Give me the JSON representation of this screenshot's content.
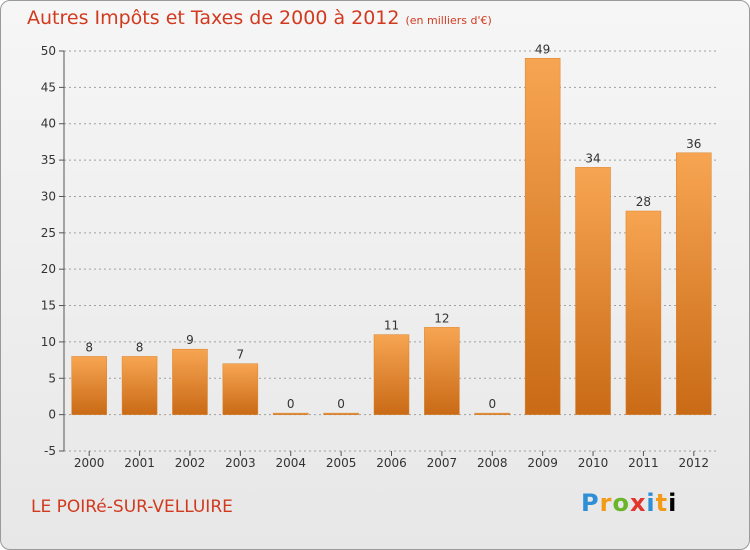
{
  "header": {
    "title": "Autres Impôts et Taxes de 2000 à 2012",
    "subtitle": "(en milliers d'€)"
  },
  "footer": {
    "place": "LE POIRé-SUR-VELLUIRE",
    "logo": [
      "P",
      "r",
      "o",
      "x",
      "i",
      "t",
      "i"
    ]
  },
  "colors": {
    "bar_top": "#f7a552",
    "bar_bottom": "#c96a16",
    "title": "#d23a1f",
    "grid": "#a0a0a0"
  },
  "chart_data": {
    "type": "bar",
    "title": "Autres Impôts et Taxes de 2000 à 2012",
    "subtitle": "(en milliers d'€)",
    "xlabel": "",
    "ylabel": "",
    "categories": [
      "2000",
      "2001",
      "2002",
      "2003",
      "2004",
      "2005",
      "2006",
      "2007",
      "2008",
      "2009",
      "2010",
      "2011",
      "2012"
    ],
    "values": [
      8,
      8,
      9,
      7,
      0,
      0,
      11,
      12,
      0,
      49,
      34,
      28,
      36
    ],
    "ylim": [
      -5,
      50
    ],
    "yticks": [
      -5,
      0,
      5,
      10,
      15,
      20,
      25,
      30,
      35,
      40,
      45,
      50
    ],
    "grid": true,
    "legend": "none"
  }
}
